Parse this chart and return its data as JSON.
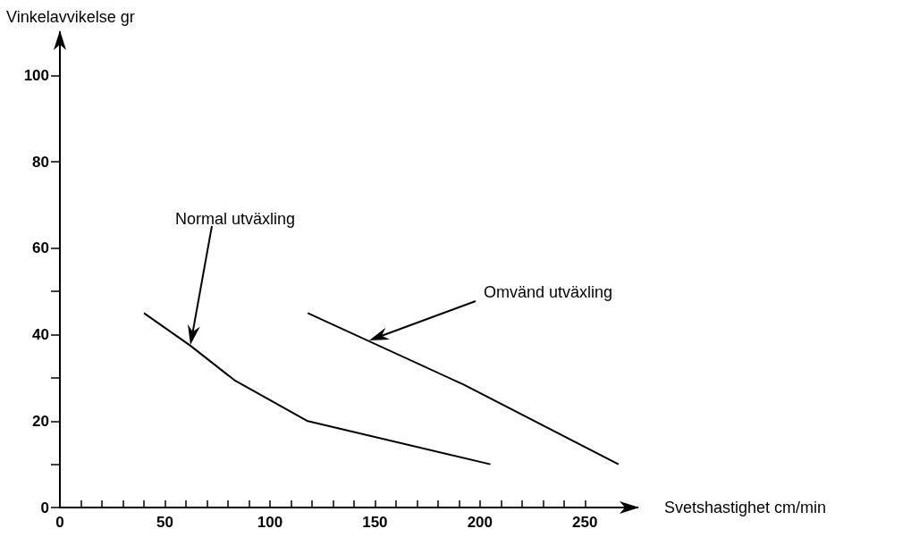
{
  "chart_data": {
    "type": "line",
    "xlabel": "Svetshastighet cm/min",
    "ylabel": "Vinkelavvikelse gr",
    "series": [
      {
        "color": "#000000",
        "x": [
          40,
          62,
          83,
          118,
          205
        ],
        "values": [
          45,
          37.5,
          29.5,
          20,
          10
        ]
      },
      {
        "color": "#000000",
        "x": [
          118,
          192,
          266
        ],
        "values": [
          45,
          28.5,
          10
        ]
      }
    ],
    "xlim": [
      0,
      275
    ],
    "ylim": [
      0,
      110
    ],
    "xticks": [
      0,
      {
        "value": 10,
        "label": null
      },
      {
        "value": 20,
        "label": null
      },
      {
        "value": 30,
        "label": null
      },
      {
        "value": 40,
        "label": null
      },
      50,
      {
        "value": 60,
        "label": null
      },
      {
        "value": 70,
        "label": null
      },
      {
        "value": 80,
        "label": null
      },
      {
        "value": 90,
        "label": null
      },
      100,
      {
        "value": 110,
        "label": null
      },
      {
        "value": 120,
        "label": null
      },
      {
        "value": 130,
        "label": null
      },
      {
        "value": 140,
        "label": null
      },
      150,
      {
        "value": 160,
        "label": null
      },
      {
        "value": 170,
        "label": null
      },
      {
        "value": 180,
        "label": null
      },
      {
        "value": 190,
        "label": null
      },
      200,
      {
        "value": 210,
        "label": null
      },
      {
        "value": 220,
        "label": null
      },
      {
        "value": 230,
        "label": null
      },
      {
        "value": 240,
        "label": null
      },
      250
    ],
    "yticks": [
      0,
      {
        "value": 10,
        "label": null
      },
      20,
      {
        "value": 30,
        "label": null
      },
      40,
      {
        "value": 50,
        "label": null
      },
      60,
      80,
      100
    ],
    "annotations": [
      "Normal utväxling",
      "Omvänd utväxling"
    ],
    "grid": false,
    "marker": "none",
    "line_style": "solid"
  }
}
